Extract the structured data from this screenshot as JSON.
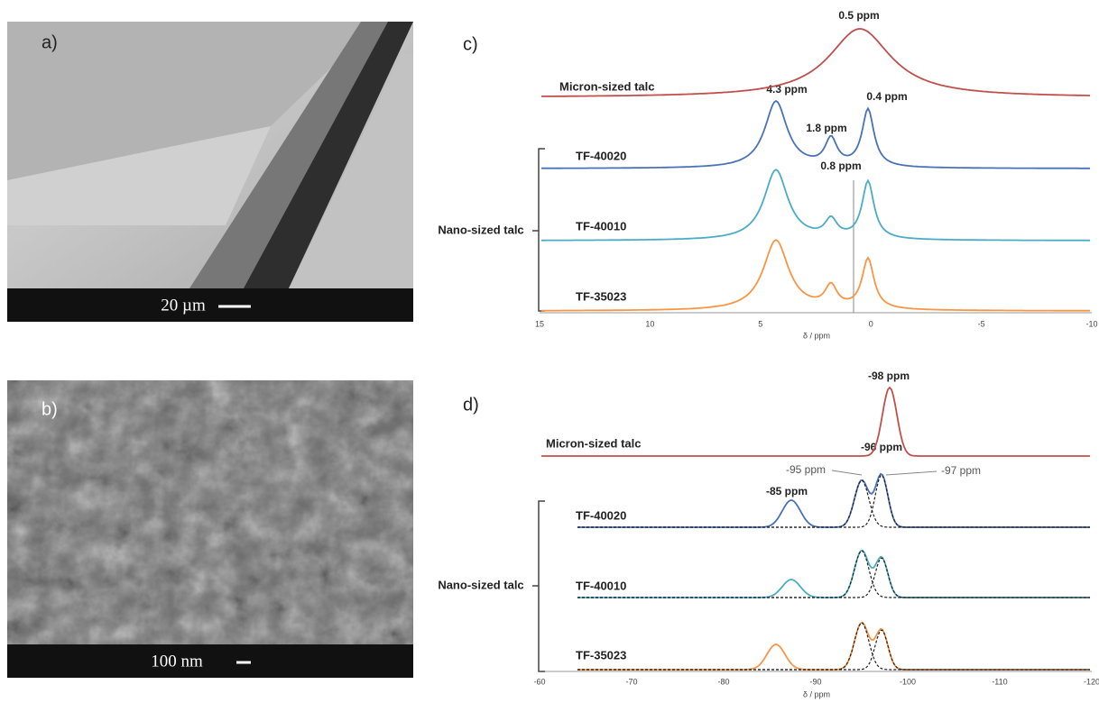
{
  "panels": {
    "a": {
      "label": "a)",
      "scale_bar": "20 µm"
    },
    "b": {
      "label": "b)",
      "scale_bar": "100 nm"
    },
    "c": {
      "label": "c)",
      "axis_label": "δ / ppm",
      "ticks": [
        "15",
        "10",
        "5",
        "0",
        "-5",
        "-10"
      ],
      "group_label": "Nano-sized talc",
      "reference": "Micron-sized talc",
      "samples": [
        "TF-40020",
        "TF-40010",
        "TF-35023"
      ],
      "annotations": [
        "0.5 ppm",
        "4.3 ppm",
        "0.4 ppm",
        "1.8 ppm",
        "0.8 ppm"
      ]
    },
    "d": {
      "label": "d)",
      "axis_label": "δ / ppm",
      "ticks": [
        "-60",
        "-70",
        "-80",
        "-90",
        "-100",
        "-110",
        "-120"
      ],
      "group_label": "Nano-sized talc",
      "reference": "Micron-sized talc",
      "samples": [
        "TF-40020",
        "TF-40010",
        "TF-35023"
      ],
      "annotations": [
        "-98 ppm",
        "-96 ppm",
        "-85 ppm",
        "-95 ppm",
        "-97 ppm"
      ]
    }
  }
}
